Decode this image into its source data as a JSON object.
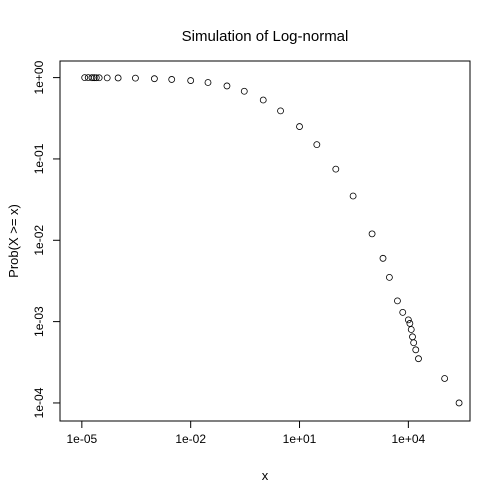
{
  "chart_data": {
    "type": "scatter",
    "title": "Simulation of Log-normal",
    "xlabel": "x",
    "ylabel": "Prob(X >= x)",
    "xscale": "log",
    "yscale": "log",
    "xlim": [
      2.5e-06,
      500000
    ],
    "ylim": [
      6e-05,
      1.6
    ],
    "grid": false,
    "marker": "open-circle",
    "x_ticks": [
      {
        "value": 1e-05,
        "label": "1e-05"
      },
      {
        "value": 0.01,
        "label": "1e-02"
      },
      {
        "value": 10,
        "label": "1e+01"
      },
      {
        "value": 10000,
        "label": "1e+04"
      }
    ],
    "y_ticks": [
      {
        "value": 0.0001,
        "label": "1e-04"
      },
      {
        "value": 0.001,
        "label": "1e-03"
      },
      {
        "value": 0.01,
        "label": "1e-02"
      },
      {
        "value": 0.1,
        "label": "1e-01"
      },
      {
        "value": 1,
        "label": "1e+00"
      }
    ],
    "series": [
      {
        "points": [
          {
            "x": 1.2e-05,
            "y": 1.0
          },
          {
            "x": 1.5e-05,
            "y": 0.999
          },
          {
            "x": 1.9e-05,
            "y": 0.998
          },
          {
            "x": 2.2e-05,
            "y": 0.997
          },
          {
            "x": 2.5e-05,
            "y": 0.996
          },
          {
            "x": 3e-05,
            "y": 0.995
          },
          {
            "x": 5e-05,
            "y": 0.993
          },
          {
            "x": 0.0001,
            "y": 0.99
          },
          {
            "x": 0.0003,
            "y": 0.985
          },
          {
            "x": 0.001,
            "y": 0.97
          },
          {
            "x": 0.003,
            "y": 0.95
          },
          {
            "x": 0.01,
            "y": 0.92
          },
          {
            "x": 0.03,
            "y": 0.87
          },
          {
            "x": 0.1,
            "y": 0.79
          },
          {
            "x": 0.3,
            "y": 0.68
          },
          {
            "x": 1,
            "y": 0.53
          },
          {
            "x": 3,
            "y": 0.39
          },
          {
            "x": 10,
            "y": 0.25
          },
          {
            "x": 30,
            "y": 0.15
          },
          {
            "x": 100,
            "y": 0.075
          },
          {
            "x": 300,
            "y": 0.035
          },
          {
            "x": 1000,
            "y": 0.012
          },
          {
            "x": 2000,
            "y": 0.006
          },
          {
            "x": 3000,
            "y": 0.0035
          },
          {
            "x": 5000,
            "y": 0.0018
          },
          {
            "x": 7000,
            "y": 0.0013
          },
          {
            "x": 10000,
            "y": 0.00105
          },
          {
            "x": 11000,
            "y": 0.00095
          },
          {
            "x": 12000,
            "y": 0.0008
          },
          {
            "x": 13000,
            "y": 0.00065
          },
          {
            "x": 14000,
            "y": 0.00055
          },
          {
            "x": 16000,
            "y": 0.00045
          },
          {
            "x": 19000,
            "y": 0.00035
          },
          {
            "x": 100000,
            "y": 0.0002
          },
          {
            "x": 250000,
            "y": 0.0001
          }
        ]
      }
    ]
  }
}
